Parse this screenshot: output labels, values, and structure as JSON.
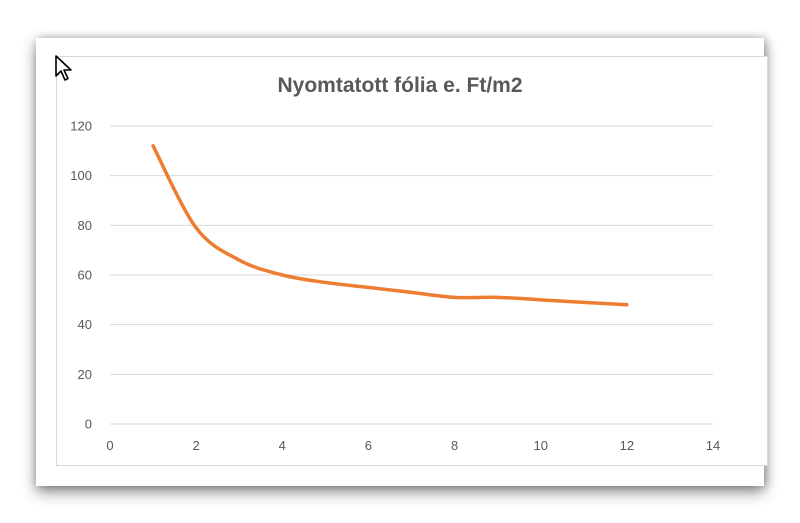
{
  "chart_data": {
    "type": "line",
    "title": "Nyomtatott fólia e. Ft/m2",
    "xlabel": "",
    "ylabel": "",
    "xlim": [
      0,
      14
    ],
    "ylim": [
      0,
      120
    ],
    "xticks": [
      0,
      2,
      4,
      6,
      8,
      10,
      12,
      14
    ],
    "yticks": [
      0,
      20,
      40,
      60,
      80,
      100,
      120
    ],
    "grid": "horizontal",
    "legend": "none",
    "series": [
      {
        "color": "#ED7D31",
        "x": [
          1,
          2,
          3,
          4,
          5,
          6,
          7,
          8,
          9,
          10,
          11,
          12
        ],
        "y": [
          112,
          79,
          66,
          60,
          57,
          55,
          53,
          51,
          51,
          50,
          49,
          48
        ]
      }
    ]
  }
}
